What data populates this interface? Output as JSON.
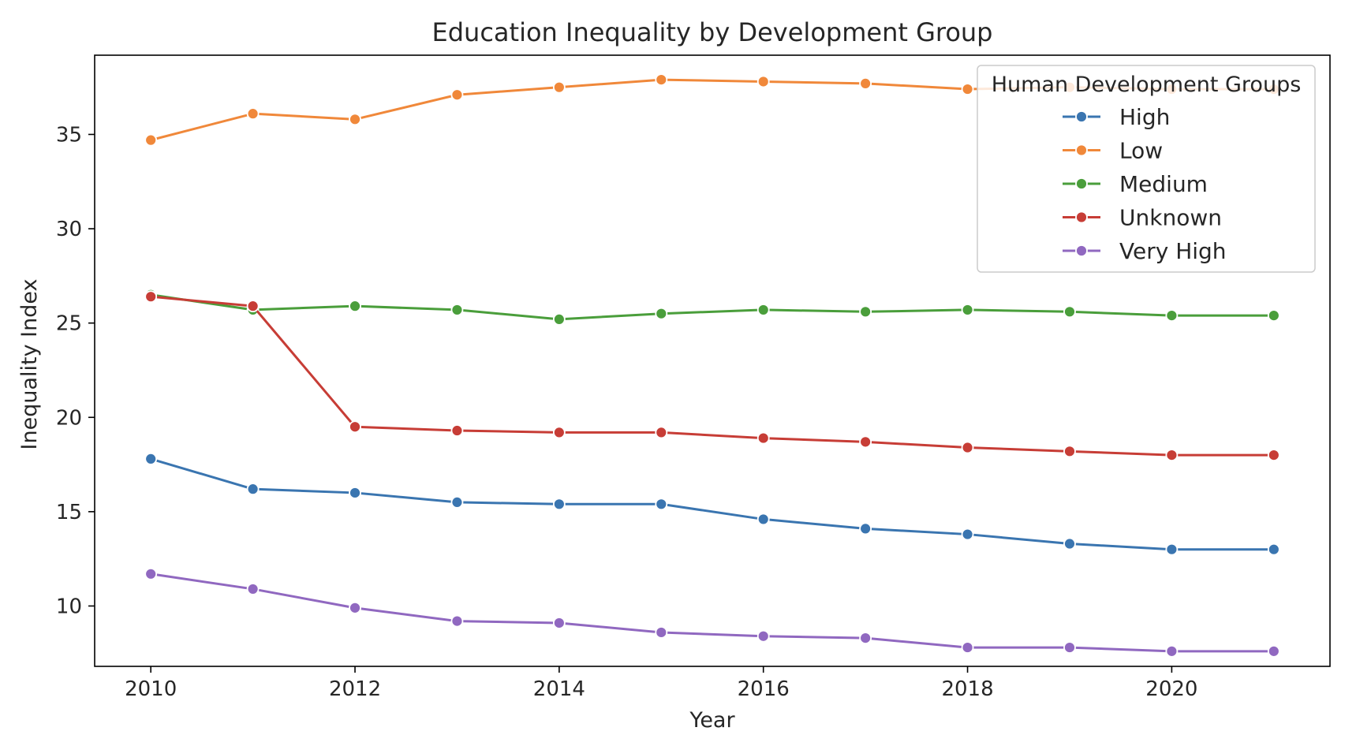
{
  "chart_data": {
    "type": "line",
    "title": "Education Inequality by Development Group",
    "xlabel": "Year",
    "ylabel": "Inequality Index",
    "xlim": [
      2009.45,
      2021.55
    ],
    "ylim": [
      6.8,
      39.2
    ],
    "xticks": [
      2010,
      2012,
      2014,
      2016,
      2018,
      2020
    ],
    "yticks": [
      10,
      15,
      20,
      25,
      30,
      35
    ],
    "grid": false,
    "legend": {
      "title": "Human Development Groups",
      "position": "top-right"
    },
    "x": [
      2010,
      2011,
      2012,
      2013,
      2014,
      2015,
      2016,
      2017,
      2018,
      2019,
      2020,
      2021
    ],
    "series": [
      {
        "name": "High",
        "color": "#3a75b0",
        "values": [
          17.8,
          16.2,
          16.0,
          15.5,
          15.4,
          15.4,
          14.6,
          14.1,
          13.8,
          13.3,
          13.0,
          13.0
        ]
      },
      {
        "name": "Low",
        "color": "#f0883a",
        "values": [
          34.7,
          36.1,
          35.8,
          37.1,
          37.5,
          37.9,
          37.8,
          37.7,
          37.4,
          37.5,
          37.4,
          37.4
        ]
      },
      {
        "name": "Medium",
        "color": "#4a9e3b",
        "values": [
          26.5,
          25.7,
          25.9,
          25.7,
          25.2,
          25.5,
          25.7,
          25.6,
          25.7,
          25.6,
          25.4,
          25.4
        ]
      },
      {
        "name": "Unknown",
        "color": "#c73d36",
        "values": [
          26.4,
          25.9,
          19.5,
          19.3,
          19.2,
          19.2,
          18.9,
          18.7,
          18.4,
          18.2,
          18.0,
          18.0
        ]
      },
      {
        "name": "Very High",
        "color": "#9068c0",
        "values": [
          11.7,
          10.9,
          9.9,
          9.2,
          9.1,
          8.6,
          8.4,
          8.3,
          7.8,
          7.8,
          7.6,
          7.6
        ]
      }
    ]
  }
}
